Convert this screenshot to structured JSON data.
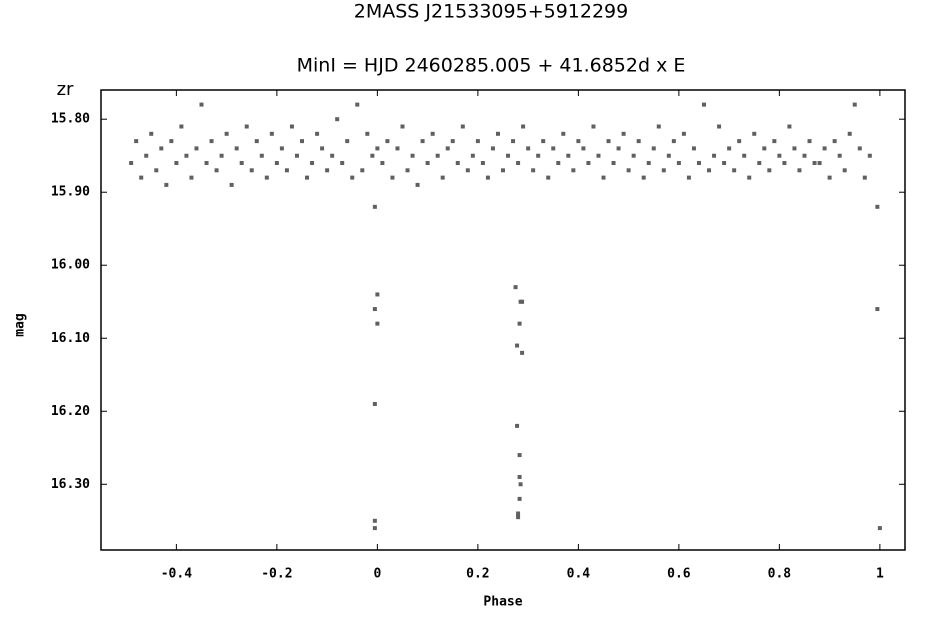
{
  "chart_data": {
    "type": "scatter",
    "title": "2MASS J21533095+5912299",
    "subtitle": "MinI = HJD 2460285.005 + 41.6852d x E",
    "y_unit_label": "zr",
    "x_label": "Phase",
    "y_label": "mag",
    "xlim": [
      -0.55,
      1.05
    ],
    "ylim": [
      16.39,
      15.76
    ],
    "xticks": [
      -0.4,
      -0.2,
      0,
      0.2,
      0.4,
      0.6,
      0.8,
      1
    ],
    "yticks": [
      {
        "value": 15.8,
        "label": "15.80"
      },
      {
        "value": 15.9,
        "label": "15.90"
      },
      {
        "value": 16.0,
        "label": "16.00"
      },
      {
        "value": 16.1,
        "label": "16.10"
      },
      {
        "value": 16.2,
        "label": "16.20"
      },
      {
        "value": 16.3,
        "label": "16.30"
      }
    ],
    "series": [
      {
        "color": "#606060",
        "x": [
          -0.49,
          -0.48,
          -0.47,
          -0.46,
          -0.45,
          -0.44,
          -0.43,
          -0.42,
          -0.41,
          -0.4,
          -0.39,
          -0.38,
          -0.37,
          -0.36,
          -0.35,
          -0.34,
          -0.33,
          -0.32,
          -0.31,
          -0.3,
          -0.29,
          -0.28,
          -0.27,
          -0.26,
          -0.25,
          -0.24,
          -0.23,
          -0.22,
          -0.21,
          -0.2,
          -0.19,
          -0.18,
          -0.17,
          -0.16,
          -0.15,
          -0.14,
          -0.13,
          -0.12,
          -0.11,
          -0.1,
          -0.09,
          -0.08,
          -0.07,
          -0.06,
          -0.05,
          -0.04,
          -0.03,
          -0.02,
          -0.01,
          0.0,
          0.01,
          0.02,
          0.03,
          0.04,
          0.05,
          0.06,
          0.07,
          0.08,
          0.09,
          0.1,
          0.11,
          0.12,
          0.13,
          0.14,
          0.15,
          0.16,
          0.17,
          0.18,
          0.19,
          0.2,
          0.21,
          0.22,
          0.23,
          0.24,
          0.25,
          0.26,
          0.27,
          0.28,
          0.29,
          0.3,
          0.31,
          0.32,
          0.33,
          0.34,
          0.35,
          0.36,
          0.37,
          0.38,
          0.39,
          0.4,
          0.41,
          0.42,
          0.43,
          0.44,
          0.45,
          0.46,
          0.47,
          0.48,
          0.49,
          0.5,
          0.51,
          0.52,
          0.53,
          0.54,
          0.55,
          0.56,
          0.57,
          0.58,
          0.59,
          0.6,
          0.61,
          0.62,
          0.63,
          0.64,
          0.65,
          0.66,
          0.67,
          0.68,
          0.69,
          0.7,
          0.71,
          0.72,
          0.73,
          0.74,
          0.75,
          0.76,
          0.77,
          0.78,
          0.79,
          0.8,
          0.81,
          0.82,
          0.83,
          0.84,
          0.85,
          0.86,
          0.87,
          0.88,
          0.89,
          0.9,
          0.91,
          0.92,
          0.93,
          0.94,
          0.95,
          0.96,
          0.97,
          0.98,
          0.0,
          -0.005,
          0.0,
          -0.005,
          -0.005,
          -0.005,
          0.275,
          0.285,
          0.288,
          0.283,
          0.278,
          0.288,
          0.278,
          0.283,
          0.283,
          0.285,
          0.283,
          0.28,
          0.28,
          0.995,
          1.0,
          0.995,
          -0.005
        ],
        "values": [
          15.86,
          15.83,
          15.88,
          15.85,
          15.82,
          15.87,
          15.84,
          15.89,
          15.83,
          15.86,
          15.81,
          15.85,
          15.88,
          15.84,
          15.78,
          15.86,
          15.83,
          15.87,
          15.85,
          15.82,
          15.89,
          15.84,
          15.86,
          15.81,
          15.87,
          15.83,
          15.85,
          15.88,
          15.82,
          15.86,
          15.84,
          15.87,
          15.81,
          15.85,
          15.83,
          15.88,
          15.86,
          15.82,
          15.84,
          15.87,
          15.85,
          15.8,
          15.86,
          15.83,
          15.88,
          15.78,
          15.87,
          15.82,
          15.85,
          15.84,
          15.86,
          15.83,
          15.88,
          15.84,
          15.81,
          15.87,
          15.85,
          15.89,
          15.83,
          15.86,
          15.82,
          15.85,
          15.88,
          15.84,
          15.83,
          15.86,
          15.81,
          15.87,
          15.85,
          15.83,
          15.86,
          15.88,
          15.84,
          15.82,
          15.87,
          15.85,
          15.83,
          15.86,
          15.81,
          15.84,
          15.87,
          15.85,
          15.83,
          15.88,
          15.84,
          15.86,
          15.82,
          15.85,
          15.87,
          15.83,
          15.84,
          15.86,
          15.81,
          15.85,
          15.88,
          15.83,
          15.86,
          15.84,
          15.82,
          15.87,
          15.85,
          15.83,
          15.88,
          15.86,
          15.84,
          15.81,
          15.87,
          15.85,
          15.83,
          15.86,
          15.82,
          15.88,
          15.84,
          15.86,
          15.78,
          15.87,
          15.85,
          15.81,
          15.86,
          15.84,
          15.87,
          15.83,
          15.85,
          15.88,
          15.82,
          15.86,
          15.84,
          15.87,
          15.83,
          15.85,
          15.86,
          15.81,
          15.84,
          15.87,
          15.85,
          15.83,
          15.86,
          15.86,
          15.84,
          15.88,
          15.83,
          15.85,
          15.87,
          15.82,
          15.78,
          15.84,
          15.88,
          15.85,
          16.04,
          16.06,
          16.08,
          16.19,
          16.35,
          16.36,
          16.03,
          16.05,
          16.05,
          16.08,
          16.11,
          16.12,
          16.22,
          16.26,
          16.29,
          16.3,
          16.32,
          16.34,
          16.345,
          16.06,
          16.36,
          15.92,
          15.92
        ]
      }
    ]
  }
}
